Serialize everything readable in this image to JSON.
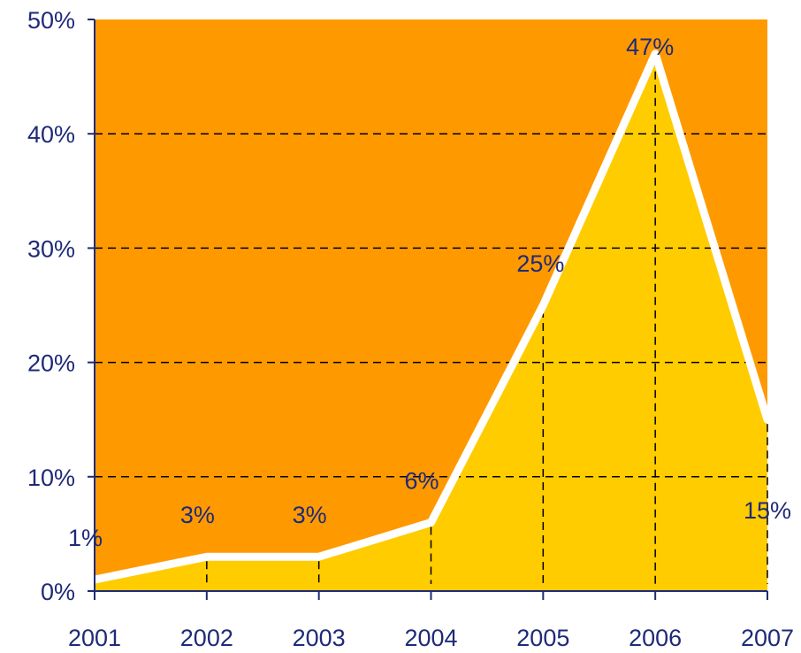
{
  "chart_data": {
    "type": "area",
    "x": [
      "2001",
      "2002",
      "2003",
      "2004",
      "2005",
      "2006",
      "2007"
    ],
    "values": [
      1,
      3,
      3,
      6,
      25,
      47,
      15
    ],
    "data_labels": [
      "1%",
      "3%",
      "3%",
      "6%",
      "25%",
      "47%",
      "15%"
    ],
    "title": "",
    "xlabel": "",
    "ylabel": "",
    "ylim": [
      0,
      50
    ],
    "y_ticks": [
      0,
      10,
      20,
      30,
      40,
      50
    ],
    "y_tick_labels": [
      "0%",
      "10%",
      "20%",
      "30%",
      "40%",
      "50%"
    ],
    "grid": "horizontal dashed",
    "colors": {
      "plot_background": "#ff9900",
      "area_fill": "#ffcc00",
      "series_line": "#ffffff",
      "text": "#1f2a78",
      "grid": "#000000",
      "axis": "#1f2a78"
    }
  }
}
